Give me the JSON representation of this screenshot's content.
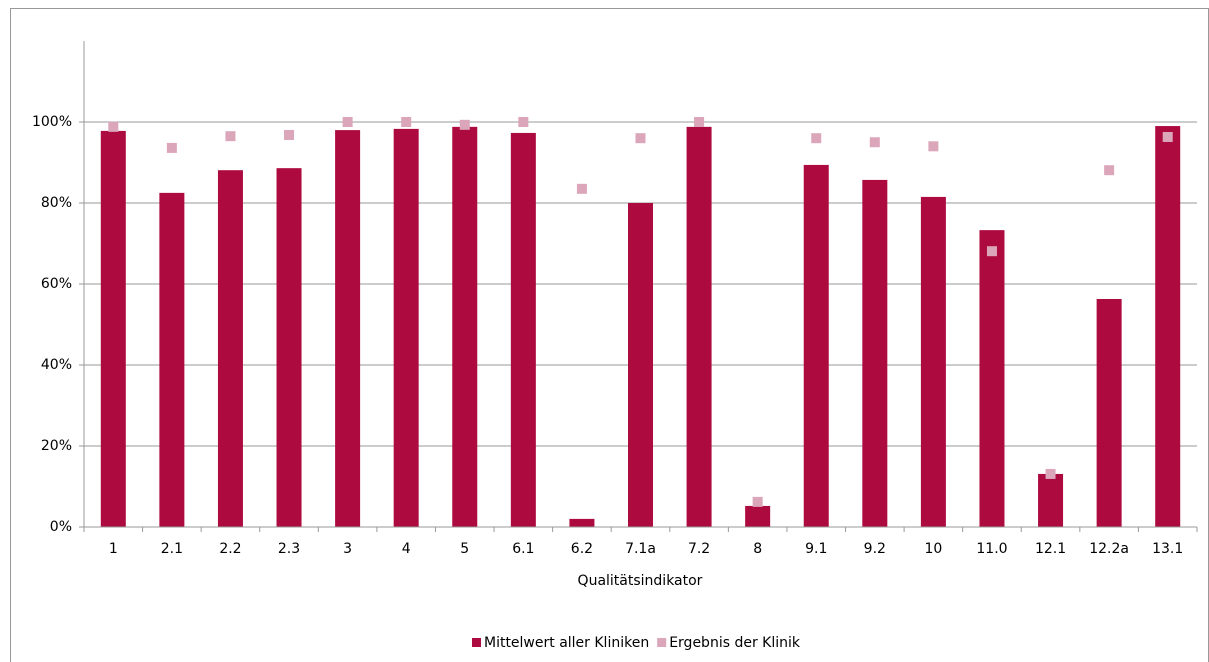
{
  "chart_data": {
    "type": "bar",
    "x_label": "Qualitätsindikator",
    "categories": [
      "1",
      "2.1",
      "2.2",
      "2.3",
      "3",
      "4",
      "5",
      "6.1",
      "6.2",
      "7.1a",
      "7.2",
      "8",
      "9.1",
      "9.2",
      "10",
      "11.0",
      "12.1",
      "12.2a",
      "13.1"
    ],
    "series": [
      {
        "name": "Mittelwert aller Kliniken",
        "type": "bar",
        "color": "#ad0a3f",
        "values": [
          97.8,
          82.5,
          88.1,
          88.6,
          98.0,
          98.3,
          98.8,
          97.3,
          2.0,
          80.0,
          98.8,
          5.2,
          89.4,
          85.7,
          81.5,
          73.3,
          13.1,
          56.3,
          99.0
        ]
      },
      {
        "name": "Ergebnis der Klinik",
        "type": "scatter",
        "color": "#dba6ba",
        "values": [
          98.8,
          93.6,
          96.5,
          96.8,
          100,
          100,
          99.3,
          100,
          83.5,
          96.0,
          100,
          6.2,
          96.0,
          95.0,
          94.0,
          68.1,
          13.1,
          88.1,
          96.3
        ]
      }
    ],
    "ylim": [
      0,
      120
    ],
    "yticks": [
      {
        "value": 0,
        "label": "0%"
      },
      {
        "value": 20,
        "label": "20%"
      },
      {
        "value": 40,
        "label": "40%"
      },
      {
        "value": 60,
        "label": "60%"
      },
      {
        "value": 80,
        "label": "80%"
      },
      {
        "value": 100,
        "label": "100%"
      }
    ],
    "grid": true,
    "legend": "bottom"
  }
}
